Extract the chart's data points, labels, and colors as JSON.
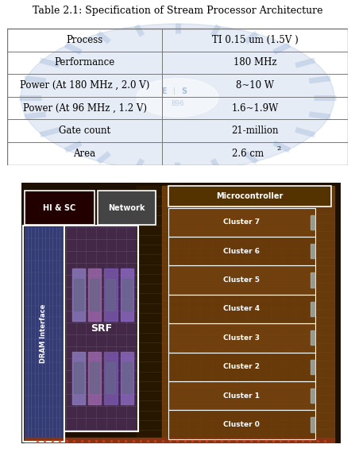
{
  "title": "Table 2.1: Specification of Stream Processor Architecture",
  "table_rows": [
    [
      "Process",
      "TI 0.15 um (1.5V )"
    ],
    [
      "Performance",
      "180 MHz"
    ],
    [
      "Power (At 180 MHz , 2.0 V)",
      "8~10 W"
    ],
    [
      "Power (At 96 MHz , 1.2 V)",
      "1.6~1.9W"
    ],
    [
      "Gate count",
      "21-million"
    ],
    [
      "Area",
      "2.6 cm²"
    ]
  ],
  "col_split": 0.455,
  "table_text_color": "#000000",
  "title_fontsize": 9.0,
  "cell_fontsize": 8.5,
  "table_edge_color": "#777777",
  "watermark_color": "#7799cc",
  "chip_labels": {
    "hi_sc": "HI & SC",
    "network": "Network",
    "microcontroller": "Microcontroller",
    "srf": "SRF",
    "dram": "DRAM Interface",
    "clusters": [
      "Cluster 7",
      "Cluster 6",
      "Cluster 5",
      "Cluster 4",
      "Cluster 3",
      "Cluster 2",
      "Cluster 1",
      "Cluster 0"
    ]
  },
  "image_bg": "#110900"
}
